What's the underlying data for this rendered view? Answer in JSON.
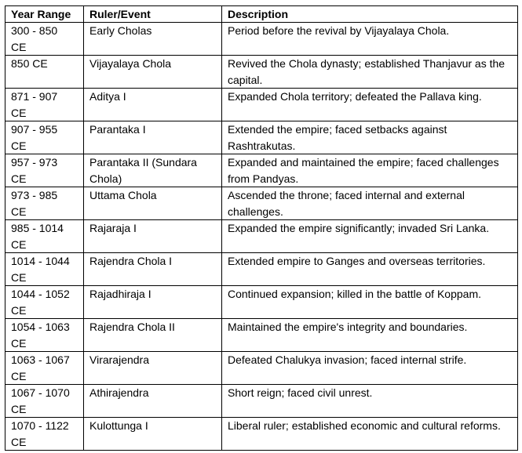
{
  "table": {
    "headers": {
      "year_range": "Year Range",
      "ruler_event": "Ruler/Event",
      "description": "Description"
    },
    "rows": [
      {
        "year": "300 - 850",
        "era": "CE",
        "ruler": "Early Cholas",
        "description": "Period before the revival by Vijayalaya Chola."
      },
      {
        "year": "850 CE",
        "era": "",
        "ruler": "Vijayalaya Chola",
        "description": "Revived the Chola dynasty; established Thanjavur as the capital."
      },
      {
        "year": "871 - 907",
        "era": "CE",
        "ruler": "Aditya I",
        "description": "Expanded Chola territory; defeated the Pallava king."
      },
      {
        "year": "907 - 955",
        "era": "CE",
        "ruler": "Parantaka I",
        "description": "Extended the empire; faced setbacks against Rashtrakutas."
      },
      {
        "year": "957 - 973",
        "era": "CE",
        "ruler": "Parantaka II (Sundara Chola)",
        "description": "Expanded and maintained the empire; faced challenges from Pandyas."
      },
      {
        "year": "973 - 985",
        "era": "CE",
        "ruler": "Uttama Chola",
        "description": "Ascended the throne; faced internal and external challenges."
      },
      {
        "year": "985 - 1014",
        "era": "CE",
        "ruler": "Rajaraja I",
        "description": "Expanded the empire significantly; invaded Sri Lanka."
      },
      {
        "year": "1014 - 1044",
        "era": "CE",
        "ruler": "Rajendra Chola I",
        "description": "Extended empire to Ganges and overseas territories."
      },
      {
        "year": "1044 - 1052",
        "era": "CE",
        "ruler": "Rajadhiraja I",
        "description": "Continued expansion; killed in the battle of Koppam."
      },
      {
        "year": "1054 - 1063",
        "era": "CE",
        "ruler": "Rajendra Chola II",
        "description": "Maintained the empire's integrity and boundaries."
      },
      {
        "year": "1063 - 1067",
        "era": "CE",
        "ruler": "Virarajendra",
        "description": "Defeated Chalukya invasion; faced internal strife."
      },
      {
        "year": "1067 - 1070",
        "era": "CE",
        "ruler": "Athirajendra",
        "description": "Short reign; faced civil unrest."
      },
      {
        "year": "1070 - 1122",
        "era": "CE",
        "ruler": "Kulottunga I",
        "description": "Liberal ruler; established economic and cultural reforms."
      }
    ]
  }
}
